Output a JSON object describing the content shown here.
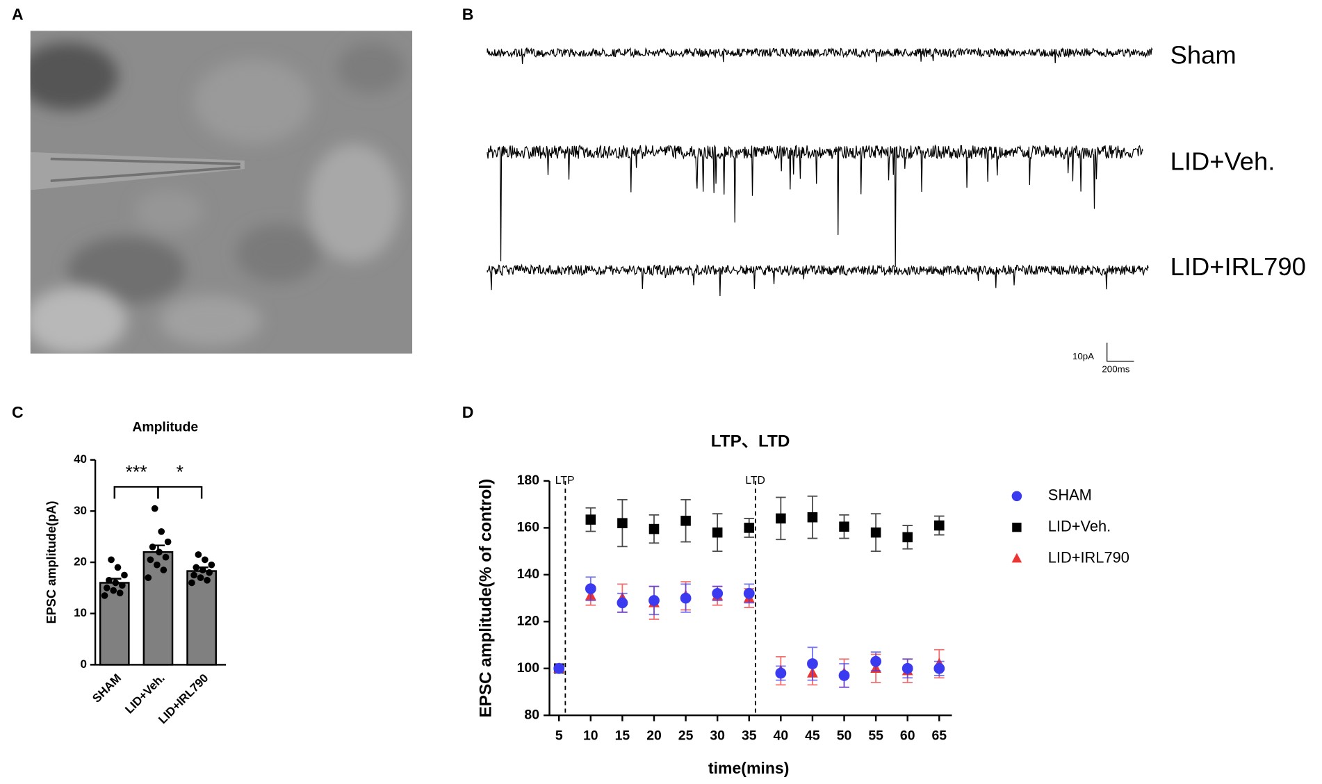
{
  "panel_labels": [
    "A",
    "B",
    "C",
    "D"
  ],
  "traces": {
    "labels": [
      "Sham",
      "LID+Veh.",
      "LID+IRL790"
    ],
    "scale_bar": {
      "y_label": "10pA",
      "x_label": "200ms"
    }
  },
  "chart_data": [
    {
      "type": "bar",
      "title": "Amplitude",
      "y_label": "EPSC amplitude(pA)",
      "categories": [
        "SHAM",
        "LID+Veh.",
        "LID+IRL790"
      ],
      "values": [
        16,
        22,
        18.3
      ],
      "errors": [
        0.8,
        1.3,
        0.7
      ],
      "points": [
        [
          13.5,
          14,
          14.5,
          15,
          15.5,
          16,
          16.5,
          17.5,
          19,
          20.5
        ],
        [
          17,
          18.5,
          19.5,
          20.5,
          21,
          22,
          23,
          24,
          26,
          30.5
        ],
        [
          16,
          16.5,
          17,
          17.5,
          18,
          18.5,
          19,
          19.5,
          20.5,
          21.5
        ]
      ],
      "color": "#808080",
      "ylim": [
        0,
        40
      ],
      "yticks": [
        0,
        10,
        20,
        30,
        40
      ],
      "significance": [
        {
          "label": "***",
          "groups": [
            0,
            1
          ]
        },
        {
          "label": "*",
          "groups": [
            1,
            2
          ]
        }
      ]
    },
    {
      "type": "scatter",
      "title": "LTP、LTD",
      "x_label": "time(mins)",
      "y_label": "EPSC amplitude(% of control)",
      "x": [
        5,
        10,
        15,
        20,
        25,
        30,
        35,
        40,
        45,
        50,
        55,
        60,
        65
      ],
      "series": [
        {
          "name": "SHAM",
          "color": "#3a3af0",
          "marker": "circle",
          "values": [
            100,
            134,
            128,
            129,
            130,
            132,
            132,
            98,
            102,
            97,
            103,
            100,
            100
          ],
          "errors": [
            0,
            5,
            4,
            6,
            6,
            3,
            4,
            3,
            7,
            5,
            4,
            4,
            3
          ]
        },
        {
          "name": "LID+Veh.",
          "color": "#000000",
          "marker": "square",
          "values": [
            100,
            163.5,
            162,
            159.5,
            163,
            158,
            160,
            164,
            164.5,
            160.5,
            158,
            156,
            161
          ],
          "errors": [
            0,
            5,
            10,
            6,
            9,
            8,
            4,
            9,
            9,
            5,
            8,
            5,
            4
          ]
        },
        {
          "name": "LID+IRL790",
          "color": "#ee3333",
          "marker": "triangle",
          "values": [
            100,
            131,
            130,
            128,
            131,
            131,
            130,
            99,
            98,
            98,
            100,
            99,
            102
          ],
          "errors": [
            0,
            4,
            6,
            7,
            6,
            4,
            4,
            6,
            5,
            6,
            6,
            5,
            6
          ]
        }
      ],
      "xlim": [
        3.5,
        67
      ],
      "ylim": [
        80,
        180
      ],
      "xticks": [
        5,
        10,
        15,
        20,
        25,
        30,
        35,
        40,
        45,
        50,
        55,
        60,
        65
      ],
      "yticks": [
        80,
        100,
        120,
        140,
        160,
        180
      ],
      "vlines": [
        {
          "x": 6,
          "label": "LTP"
        },
        {
          "x": 36,
          "label": "LTD"
        }
      ],
      "legend": "right"
    }
  ]
}
